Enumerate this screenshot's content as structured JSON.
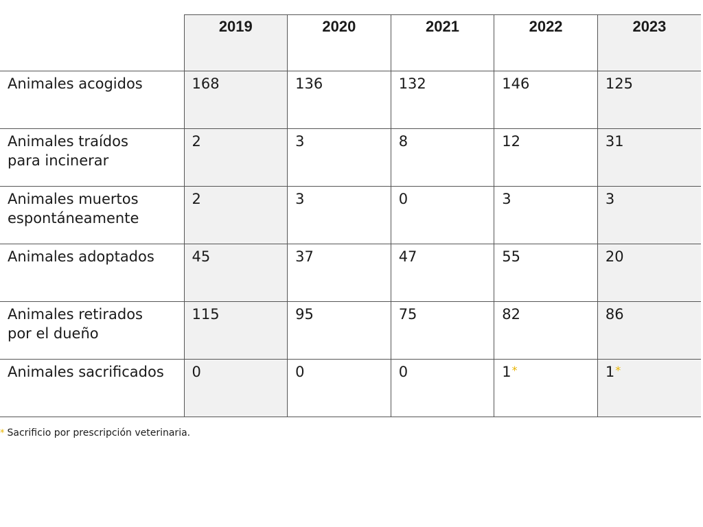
{
  "table": {
    "years": [
      "2019",
      "2020",
      "2021",
      "2022",
      "2023"
    ],
    "rows": [
      {
        "label": "Animales acogidos",
        "values": [
          "168",
          "136",
          "132",
          "146",
          "125"
        ],
        "marks": [
          "",
          "",
          "",
          "",
          ""
        ]
      },
      {
        "label": "Animales traídos\npara incinerar",
        "values": [
          "2",
          "3",
          "8",
          "12",
          "31"
        ],
        "marks": [
          "",
          "",
          "",
          "",
          ""
        ]
      },
      {
        "label": "Animales muertos\nespontáneamente",
        "values": [
          "2",
          "3",
          "0",
          "3",
          "3"
        ],
        "marks": [
          "",
          "",
          "",
          "",
          ""
        ]
      },
      {
        "label": "Animales adoptados",
        "values": [
          "45",
          "37",
          "47",
          "55",
          "20"
        ],
        "marks": [
          "",
          "",
          "",
          "",
          ""
        ]
      },
      {
        "label": "Animales retirados\npor el dueño",
        "values": [
          "115",
          "95",
          "75",
          "82",
          "86"
        ],
        "marks": [
          "",
          "",
          "",
          "",
          ""
        ]
      },
      {
        "label": "Animales sacrificados",
        "values": [
          "0",
          "0",
          "0",
          "1",
          "1"
        ],
        "marks": [
          "",
          "",
          "",
          "*",
          "*"
        ]
      }
    ]
  },
  "footnote": {
    "marker": "*",
    "text": "Sacrificio por prescripción veterinaria."
  },
  "colors": {
    "marker": "#e8b400",
    "shaded_cell": "#f1f1f1",
    "border": "#555555"
  }
}
